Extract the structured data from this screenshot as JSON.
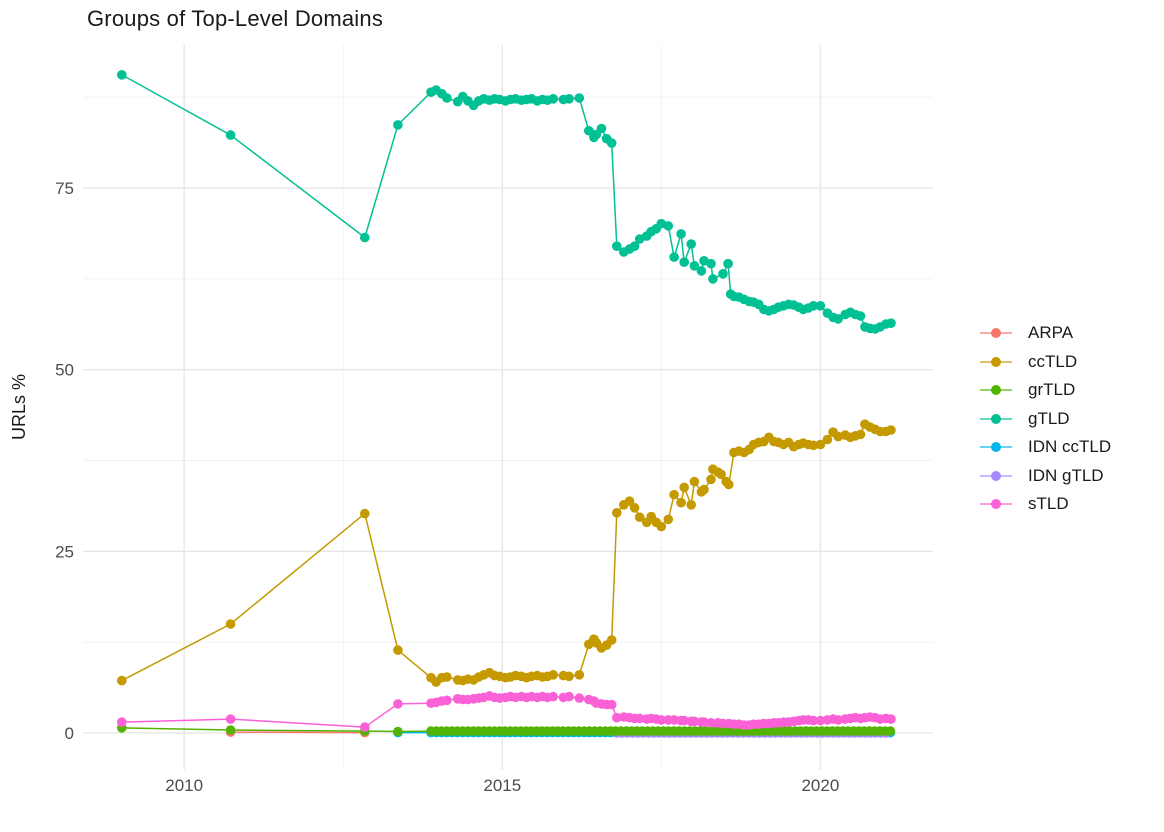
{
  "page": {
    "background": "#ffffff"
  },
  "colors": {
    "grid_major": "#e6e6e6",
    "grid_minor": "#f2f2f2",
    "tick_label": "#4d4d4d",
    "title_text": "#1a1a1a",
    "legend_text": "#1a1a1a"
  },
  "chart_data": {
    "type": "line",
    "title": "Groups of Top-Level Domains",
    "xlabel": "",
    "ylabel": "URLs %",
    "legend_position": "right",
    "grid": true,
    "xlim": [
      2008.41,
      2021.77
    ],
    "ylim": [
      -5.1,
      94.7
    ],
    "x_ticks": [
      2010,
      2015,
      2020
    ],
    "x_minor_ticks": [
      2012.5,
      2017.5
    ],
    "y_ticks": [
      0,
      25,
      50,
      75
    ],
    "y_minor_ticks": [
      12.5,
      37.5,
      62.5,
      87.5
    ],
    "series": [
      {
        "name": "ARPA",
        "color": "#F8766D",
        "points": [
          [
            2010.73,
            0.12
          ],
          [
            2012.84,
            0.05
          ]
        ]
      },
      {
        "name": "ccTLD",
        "color": "#C49A00",
        "points": [
          [
            2009.02,
            7.2
          ],
          [
            2010.73,
            15.0
          ],
          [
            2012.84,
            30.2
          ],
          [
            2013.36,
            11.4
          ],
          [
            2013.88,
            7.6
          ],
          [
            2013.96,
            7.0
          ],
          [
            2014.05,
            7.6
          ],
          [
            2014.13,
            7.7
          ],
          [
            2014.3,
            7.3
          ],
          [
            2014.38,
            7.2
          ],
          [
            2014.46,
            7.4
          ],
          [
            2014.55,
            7.3
          ],
          [
            2014.63,
            7.7
          ],
          [
            2014.71,
            8.0
          ],
          [
            2014.8,
            8.3
          ],
          [
            2014.88,
            7.9
          ],
          [
            2014.96,
            7.8
          ],
          [
            2015.05,
            7.6
          ],
          [
            2015.13,
            7.7
          ],
          [
            2015.21,
            7.9
          ],
          [
            2015.3,
            7.8
          ],
          [
            2015.38,
            7.6
          ],
          [
            2015.46,
            7.8
          ],
          [
            2015.55,
            7.9
          ],
          [
            2015.63,
            7.7
          ],
          [
            2015.71,
            7.8
          ],
          [
            2015.8,
            8.0
          ],
          [
            2015.96,
            7.9
          ],
          [
            2016.05,
            7.8
          ],
          [
            2016.21,
            8.0
          ],
          [
            2016.36,
            12.2
          ],
          [
            2016.44,
            12.9
          ],
          [
            2016.48,
            12.4
          ],
          [
            2016.56,
            11.7
          ],
          [
            2016.64,
            12.1
          ],
          [
            2016.72,
            12.8
          ],
          [
            2016.8,
            30.3
          ],
          [
            2016.91,
            31.4
          ],
          [
            2017.0,
            31.9
          ],
          [
            2017.08,
            31.0
          ],
          [
            2017.16,
            29.7
          ],
          [
            2017.27,
            29.0
          ],
          [
            2017.34,
            29.8
          ],
          [
            2017.42,
            29.0
          ],
          [
            2017.5,
            28.4
          ],
          [
            2017.61,
            29.4
          ],
          [
            2017.7,
            32.8
          ],
          [
            2017.81,
            31.7
          ],
          [
            2017.86,
            33.8
          ],
          [
            2017.97,
            31.4
          ],
          [
            2018.02,
            34.6
          ],
          [
            2018.13,
            33.2
          ],
          [
            2018.17,
            33.5
          ],
          [
            2018.28,
            34.9
          ],
          [
            2018.31,
            36.3
          ],
          [
            2018.39,
            35.9
          ],
          [
            2018.44,
            35.6
          ],
          [
            2018.52,
            34.6
          ],
          [
            2018.56,
            34.2
          ],
          [
            2018.64,
            38.6
          ],
          [
            2018.72,
            38.8
          ],
          [
            2018.8,
            38.6
          ],
          [
            2018.88,
            39.0
          ],
          [
            2018.95,
            39.7
          ],
          [
            2019.03,
            40.0
          ],
          [
            2019.11,
            40.1
          ],
          [
            2019.19,
            40.7
          ],
          [
            2019.27,
            40.1
          ],
          [
            2019.34,
            40.0
          ],
          [
            2019.42,
            39.7
          ],
          [
            2019.5,
            40.0
          ],
          [
            2019.58,
            39.4
          ],
          [
            2019.66,
            39.7
          ],
          [
            2019.73,
            39.9
          ],
          [
            2019.81,
            39.7
          ],
          [
            2019.89,
            39.6
          ],
          [
            2020.0,
            39.7
          ],
          [
            2020.11,
            40.4
          ],
          [
            2020.2,
            41.4
          ],
          [
            2020.28,
            40.8
          ],
          [
            2020.39,
            41.0
          ],
          [
            2020.47,
            40.7
          ],
          [
            2020.55,
            40.9
          ],
          [
            2020.63,
            41.1
          ],
          [
            2020.7,
            42.5
          ],
          [
            2020.78,
            42.1
          ],
          [
            2020.86,
            41.8
          ],
          [
            2020.94,
            41.5
          ],
          [
            2021.03,
            41.5
          ],
          [
            2021.11,
            41.7
          ]
        ]
      },
      {
        "name": "grTLD",
        "color": "#53B400",
        "points": [
          [
            2009.02,
            0.7
          ],
          [
            2010.73,
            0.4
          ],
          [
            2012.84,
            0.25
          ],
          [
            2013.36,
            0.2
          ]
        ],
        "runs": [
          {
            "x_start": 2013.88,
            "x_end": 2021.11,
            "x_step": 0.083,
            "value": 0.25
          }
        ]
      },
      {
        "name": "gTLD",
        "color": "#00C094",
        "points": [
          [
            2009.02,
            90.6
          ],
          [
            2010.73,
            82.3
          ],
          [
            2012.84,
            68.2
          ],
          [
            2013.36,
            83.7
          ],
          [
            2013.88,
            88.2
          ],
          [
            2013.96,
            88.5
          ],
          [
            2014.05,
            88.0
          ],
          [
            2014.13,
            87.4
          ],
          [
            2014.3,
            86.9
          ],
          [
            2014.38,
            87.6
          ],
          [
            2014.46,
            87.0
          ],
          [
            2014.55,
            86.4
          ],
          [
            2014.63,
            87.0
          ],
          [
            2014.71,
            87.3
          ],
          [
            2014.8,
            87.1
          ],
          [
            2014.88,
            87.3
          ],
          [
            2014.96,
            87.2
          ],
          [
            2015.05,
            87.0
          ],
          [
            2015.13,
            87.2
          ],
          [
            2015.21,
            87.3
          ],
          [
            2015.3,
            87.1
          ],
          [
            2015.38,
            87.2
          ],
          [
            2015.46,
            87.3
          ],
          [
            2015.55,
            87.0
          ],
          [
            2015.63,
            87.2
          ],
          [
            2015.71,
            87.1
          ],
          [
            2015.8,
            87.3
          ],
          [
            2015.96,
            87.2
          ],
          [
            2016.05,
            87.3
          ],
          [
            2016.21,
            87.4
          ],
          [
            2016.36,
            82.9
          ],
          [
            2016.44,
            82.0
          ],
          [
            2016.48,
            82.4
          ],
          [
            2016.56,
            83.2
          ],
          [
            2016.64,
            81.8
          ],
          [
            2016.72,
            81.2
          ],
          [
            2016.8,
            67.0
          ],
          [
            2016.91,
            66.2
          ],
          [
            2017.0,
            66.6
          ],
          [
            2017.08,
            67.0
          ],
          [
            2017.16,
            68.0
          ],
          [
            2017.27,
            68.4
          ],
          [
            2017.34,
            69.0
          ],
          [
            2017.42,
            69.4
          ],
          [
            2017.5,
            70.1
          ],
          [
            2017.61,
            69.8
          ],
          [
            2017.7,
            65.5
          ],
          [
            2017.81,
            68.7
          ],
          [
            2017.86,
            64.8
          ],
          [
            2017.97,
            67.3
          ],
          [
            2018.02,
            64.3
          ],
          [
            2018.13,
            63.6
          ],
          [
            2018.17,
            65.0
          ],
          [
            2018.28,
            64.6
          ],
          [
            2018.31,
            62.5
          ],
          [
            2018.47,
            63.2
          ],
          [
            2018.55,
            64.6
          ],
          [
            2018.59,
            60.4
          ],
          [
            2018.64,
            60.1
          ],
          [
            2018.72,
            60.0
          ],
          [
            2018.8,
            59.7
          ],
          [
            2018.88,
            59.4
          ],
          [
            2018.95,
            59.3
          ],
          [
            2019.03,
            59.0
          ],
          [
            2019.11,
            58.3
          ],
          [
            2019.19,
            58.1
          ],
          [
            2019.27,
            58.3
          ],
          [
            2019.34,
            58.6
          ],
          [
            2019.42,
            58.8
          ],
          [
            2019.5,
            59.0
          ],
          [
            2019.58,
            58.9
          ],
          [
            2019.66,
            58.6
          ],
          [
            2019.73,
            58.3
          ],
          [
            2019.81,
            58.5
          ],
          [
            2019.89,
            58.8
          ],
          [
            2020.0,
            58.8
          ],
          [
            2020.11,
            57.8
          ],
          [
            2020.2,
            57.2
          ],
          [
            2020.28,
            57.0
          ],
          [
            2020.39,
            57.6
          ],
          [
            2020.47,
            57.9
          ],
          [
            2020.55,
            57.6
          ],
          [
            2020.63,
            57.4
          ],
          [
            2020.7,
            55.9
          ],
          [
            2020.78,
            55.7
          ],
          [
            2020.86,
            55.6
          ],
          [
            2020.94,
            55.9
          ],
          [
            2021.03,
            56.3
          ],
          [
            2021.11,
            56.4
          ]
        ]
      },
      {
        "name": "IDN ccTLD",
        "color": "#00B6EB",
        "points": [
          [
            2013.36,
            0.05
          ]
        ],
        "runs": [
          {
            "x_start": 2013.88,
            "x_end": 2021.11,
            "x_step": 0.083,
            "value": 0.05
          }
        ]
      },
      {
        "name": "IDN gTLD",
        "color": "#A58AFF",
        "points": [],
        "runs": [
          {
            "x_start": 2016.8,
            "x_end": 2021.11,
            "x_step": 0.083,
            "value": 0.0
          }
        ]
      },
      {
        "name": "sTLD",
        "color": "#FB61D7",
        "points": [
          [
            2009.02,
            1.5
          ],
          [
            2010.73,
            1.9
          ],
          [
            2012.84,
            0.8
          ],
          [
            2013.36,
            4.0
          ],
          [
            2013.88,
            4.1
          ],
          [
            2013.96,
            4.2
          ],
          [
            2014.05,
            4.4
          ],
          [
            2014.13,
            4.5
          ],
          [
            2014.3,
            4.7
          ],
          [
            2014.38,
            4.6
          ],
          [
            2014.46,
            4.6
          ],
          [
            2014.55,
            4.7
          ],
          [
            2014.63,
            4.8
          ],
          [
            2014.71,
            4.9
          ],
          [
            2014.8,
            5.1
          ],
          [
            2014.88,
            4.9
          ],
          [
            2014.96,
            4.8
          ],
          [
            2015.05,
            4.9
          ],
          [
            2015.13,
            5.0
          ],
          [
            2015.21,
            4.9
          ],
          [
            2015.3,
            5.0
          ],
          [
            2015.38,
            4.9
          ],
          [
            2015.46,
            5.0
          ],
          [
            2015.55,
            4.9
          ],
          [
            2015.63,
            5.0
          ],
          [
            2015.71,
            4.9
          ],
          [
            2015.8,
            5.0
          ],
          [
            2015.96,
            4.9
          ],
          [
            2016.05,
            5.0
          ],
          [
            2016.21,
            4.8
          ],
          [
            2016.36,
            4.6
          ],
          [
            2016.44,
            4.4
          ],
          [
            2016.48,
            4.1
          ],
          [
            2016.56,
            4.0
          ],
          [
            2016.64,
            3.9
          ],
          [
            2016.72,
            3.9
          ],
          [
            2016.8,
            2.1
          ],
          [
            2016.91,
            2.2
          ],
          [
            2017.0,
            2.1
          ],
          [
            2017.08,
            2.0
          ],
          [
            2017.16,
            2.0
          ],
          [
            2017.27,
            1.9
          ],
          [
            2017.34,
            2.0
          ],
          [
            2017.42,
            1.9
          ],
          [
            2017.5,
            1.8
          ],
          [
            2017.61,
            1.8
          ],
          [
            2017.7,
            1.8
          ],
          [
            2017.81,
            1.7
          ],
          [
            2017.86,
            1.7
          ],
          [
            2017.97,
            1.6
          ],
          [
            2018.02,
            1.6
          ],
          [
            2018.13,
            1.5
          ],
          [
            2018.17,
            1.5
          ],
          [
            2018.28,
            1.4
          ],
          [
            2018.39,
            1.4
          ],
          [
            2018.47,
            1.3
          ],
          [
            2018.56,
            1.3
          ],
          [
            2018.64,
            1.2
          ],
          [
            2018.72,
            1.2
          ],
          [
            2018.8,
            1.1
          ],
          [
            2018.88,
            1.1
          ],
          [
            2018.95,
            1.2
          ],
          [
            2019.03,
            1.2
          ],
          [
            2019.11,
            1.3
          ],
          [
            2019.19,
            1.3
          ],
          [
            2019.27,
            1.4
          ],
          [
            2019.34,
            1.4
          ],
          [
            2019.42,
            1.5
          ],
          [
            2019.5,
            1.5
          ],
          [
            2019.58,
            1.6
          ],
          [
            2019.66,
            1.7
          ],
          [
            2019.73,
            1.8
          ],
          [
            2019.81,
            1.8
          ],
          [
            2019.89,
            1.7
          ],
          [
            2020.0,
            1.7
          ],
          [
            2020.11,
            1.8
          ],
          [
            2020.2,
            1.9
          ],
          [
            2020.28,
            1.8
          ],
          [
            2020.39,
            1.9
          ],
          [
            2020.47,
            2.0
          ],
          [
            2020.55,
            2.1
          ],
          [
            2020.63,
            2.0
          ],
          [
            2020.7,
            2.1
          ],
          [
            2020.78,
            2.2
          ],
          [
            2020.86,
            2.1
          ],
          [
            2020.94,
            1.9
          ],
          [
            2021.03,
            2.0
          ],
          [
            2021.11,
            1.9
          ]
        ]
      }
    ]
  }
}
